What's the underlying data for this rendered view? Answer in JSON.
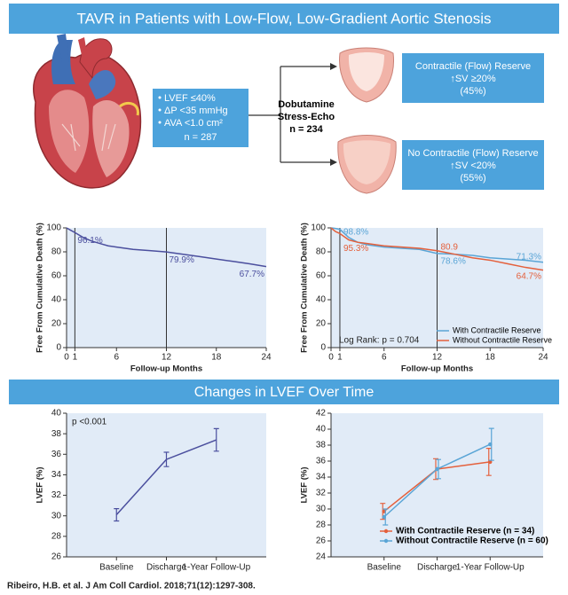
{
  "header": {
    "title": "TAVR in Patients with Low-Flow, Low-Gradient Aortic Stenosis"
  },
  "criteria": {
    "items": [
      "LVEF ≤40%",
      "ΔP <35 mmHg",
      "AVA <1.0 cm²"
    ],
    "n": "n = 287"
  },
  "test": {
    "lines": [
      "Dobutamine",
      "Stress-Echo"
    ],
    "n": "n = 234"
  },
  "outcomes": [
    {
      "title": "Contractile (Flow) Reserve",
      "criterion": "↑SV ≥20%",
      "share": "(45%)"
    },
    {
      "title": "No Contractile (Flow) Reserve",
      "criterion": "↑SV <20%",
      "share": "(55%)"
    }
  ],
  "section_title": "Changes in LVEF Over Time",
  "citation": "Ribeiro, H.B. et al. J Am Coll Cardiol. 2018;71(12):1297-308.",
  "chart_data": [
    {
      "type": "line",
      "xlabel": "Follow-up Months",
      "ylabel": "Free From Cumulative Death (%)",
      "x": [
        0,
        0.5,
        1,
        2,
        3,
        4,
        5,
        6,
        8,
        10,
        12,
        14,
        16,
        18,
        20,
        22,
        24
      ],
      "series": [
        {
          "color": "#4b4f9e",
          "values": [
            100,
            98,
            96.1,
            92,
            89,
            87,
            85,
            84,
            82,
            81,
            79.9,
            78,
            76,
            74,
            72,
            70,
            67.7
          ]
        }
      ],
      "xlim": [
        0,
        24
      ],
      "xticks": [
        0,
        1,
        6,
        12,
        18,
        24
      ],
      "ylim": [
        0,
        100
      ],
      "yticks": [
        0,
        20,
        40,
        60,
        80,
        100
      ],
      "vlines": [
        1,
        12
      ],
      "annotations": [
        {
          "x": 1,
          "y": 96.1,
          "label": "96.1%",
          "color": "#4b4f9e"
        },
        {
          "x": 12,
          "y": 79.9,
          "label": "79.9%",
          "color": "#4b4f9e"
        },
        {
          "x": 24,
          "y": 67.7,
          "label": "67.7%",
          "color": "#4b4f9e"
        }
      ]
    },
    {
      "type": "line",
      "xlabel": "Follow-up Months",
      "ylabel": "Free From Cumulative Death (%)",
      "x": [
        0,
        0.5,
        1,
        2,
        3,
        4,
        5,
        6,
        8,
        10,
        12,
        14,
        16,
        18,
        20,
        22,
        24
      ],
      "series": [
        {
          "name": "With Contractile Reserve",
          "color": "#5aa5d6",
          "values": [
            100,
            99.5,
            98.8,
            92,
            88,
            86,
            85,
            84,
            83,
            82,
            78.6,
            78,
            77,
            75,
            74,
            73,
            71.3
          ]
        },
        {
          "name": "Without Contractile Reserve",
          "color": "#e4603c",
          "values": [
            100,
            97,
            95.3,
            90,
            88,
            87,
            86,
            85,
            84,
            83,
            80.9,
            78,
            75,
            73,
            70,
            67,
            64.7
          ]
        }
      ],
      "xlim": [
        0,
        24
      ],
      "xticks": [
        0,
        1,
        6,
        12,
        18,
        24
      ],
      "ylim": [
        0,
        100
      ],
      "yticks": [
        0,
        20,
        40,
        60,
        80,
        100
      ],
      "vlines": [
        1,
        12
      ],
      "legend": "lower right",
      "note": "Log Rank: p = 0.704",
      "annotations": [
        {
          "x": 1,
          "y": 98.8,
          "label": "98.8%",
          "color": "#5aa5d6"
        },
        {
          "x": 1,
          "y": 95.3,
          "label": "95.3%",
          "color": "#e4603c"
        },
        {
          "x": 12,
          "y": 80.9,
          "label": "80.9",
          "color": "#e4603c"
        },
        {
          "x": 12,
          "y": 78.6,
          "label": "78.6%",
          "color": "#5aa5d6"
        },
        {
          "x": 24,
          "y": 71.3,
          "label": "71.3%",
          "color": "#5aa5d6"
        },
        {
          "x": 24,
          "y": 64.7,
          "label": "64.7%",
          "color": "#e4603c"
        }
      ]
    },
    {
      "type": "line",
      "ylabel": "LVEF (%)",
      "categories": [
        "Baseline",
        "Discharge",
        "1-Year Follow-Up"
      ],
      "series": [
        {
          "color": "#4b4f9e",
          "values": [
            30.1,
            35.5,
            37.4
          ],
          "errors": [
            0.6,
            0.7,
            1.1
          ]
        }
      ],
      "ylim": [
        26,
        40
      ],
      "yticks": [
        26,
        28,
        30,
        32,
        34,
        36,
        38,
        40
      ],
      "note": "p <0.001"
    },
    {
      "type": "line",
      "ylabel": "LVEF (%)",
      "categories": [
        "Baseline",
        "Discharge",
        "1-Year Follow-Up"
      ],
      "series": [
        {
          "name": "With Contractile Reserve (n = 34)",
          "color": "#e4603c",
          "values": [
            29.7,
            35.0,
            35.9
          ],
          "errors": [
            1.0,
            1.3,
            1.7
          ]
        },
        {
          "name": "Without Contractile Reserve (n = 60)",
          "color": "#5aa5d6",
          "values": [
            29.0,
            35.0,
            38.1
          ],
          "errors": [
            1.0,
            1.2,
            2.0
          ]
        }
      ],
      "ylim": [
        24,
        42
      ],
      "yticks": [
        24,
        26,
        28,
        30,
        32,
        34,
        36,
        38,
        40,
        42
      ],
      "markers": true,
      "legend": "lower right"
    }
  ]
}
